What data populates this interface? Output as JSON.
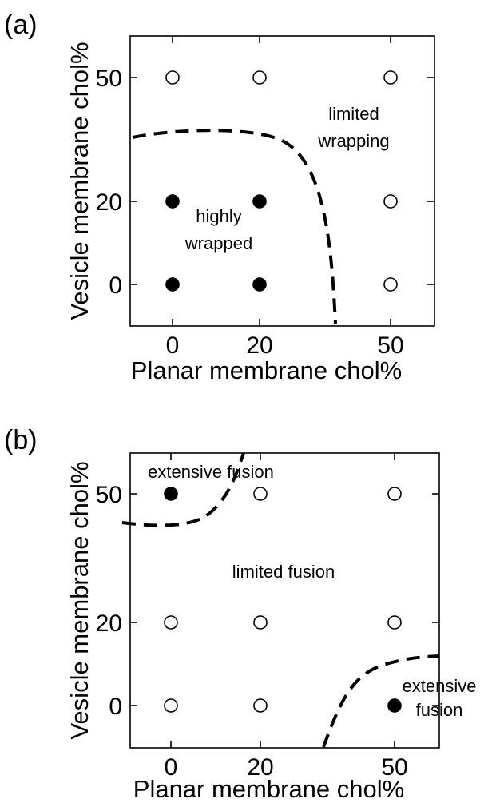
{
  "chart_data": [
    {
      "type": "scatter",
      "panel_label": "(a)",
      "xlabel": "Planar membrane chol%",
      "ylabel": "Vesicle membrane chol%",
      "xticks": [
        "0",
        "20",
        "50"
      ],
      "yticks": [
        "0",
        "20",
        "50"
      ],
      "points": [
        {
          "x": 0,
          "y": 0,
          "filled": true
        },
        {
          "x": 20,
          "y": 0,
          "filled": true
        },
        {
          "x": 50,
          "y": 0,
          "filled": false
        },
        {
          "x": 0,
          "y": 20,
          "filled": true
        },
        {
          "x": 20,
          "y": 20,
          "filled": true
        },
        {
          "x": 50,
          "y": 20,
          "filled": false
        },
        {
          "x": 0,
          "y": 50,
          "filled": false
        },
        {
          "x": 20,
          "y": 50,
          "filled": false
        },
        {
          "x": 50,
          "y": 50,
          "filled": false
        }
      ],
      "annotations": [
        {
          "id": "limited-wrapping",
          "lines": [
            "limited",
            "wrapping"
          ]
        },
        {
          "id": "highly-wrapped",
          "lines": [
            "highly",
            "wrapped"
          ]
        }
      ]
    },
    {
      "type": "scatter",
      "panel_label": "(b)",
      "xlabel": "Planar membrane chol%",
      "ylabel": "Vesicle membrane chol%",
      "xticks": [
        "0",
        "20",
        "50"
      ],
      "yticks": [
        "0",
        "20",
        "50"
      ],
      "points": [
        {
          "x": 0,
          "y": 0,
          "filled": false
        },
        {
          "x": 20,
          "y": 0,
          "filled": false
        },
        {
          "x": 50,
          "y": 0,
          "filled": true
        },
        {
          "x": 0,
          "y": 20,
          "filled": false
        },
        {
          "x": 20,
          "y": 20,
          "filled": false
        },
        {
          "x": 50,
          "y": 20,
          "filled": false
        },
        {
          "x": 0,
          "y": 50,
          "filled": true
        },
        {
          "x": 20,
          "y": 50,
          "filled": false
        },
        {
          "x": 50,
          "y": 50,
          "filled": false
        }
      ],
      "annotations": [
        {
          "id": "extensive-fusion-top",
          "lines": [
            "extensive fusion"
          ]
        },
        {
          "id": "limited-fusion",
          "lines": [
            "limited fusion"
          ]
        },
        {
          "id": "extensive-fusion-bottom",
          "lines": [
            "extensive",
            "fusion"
          ]
        }
      ]
    }
  ]
}
